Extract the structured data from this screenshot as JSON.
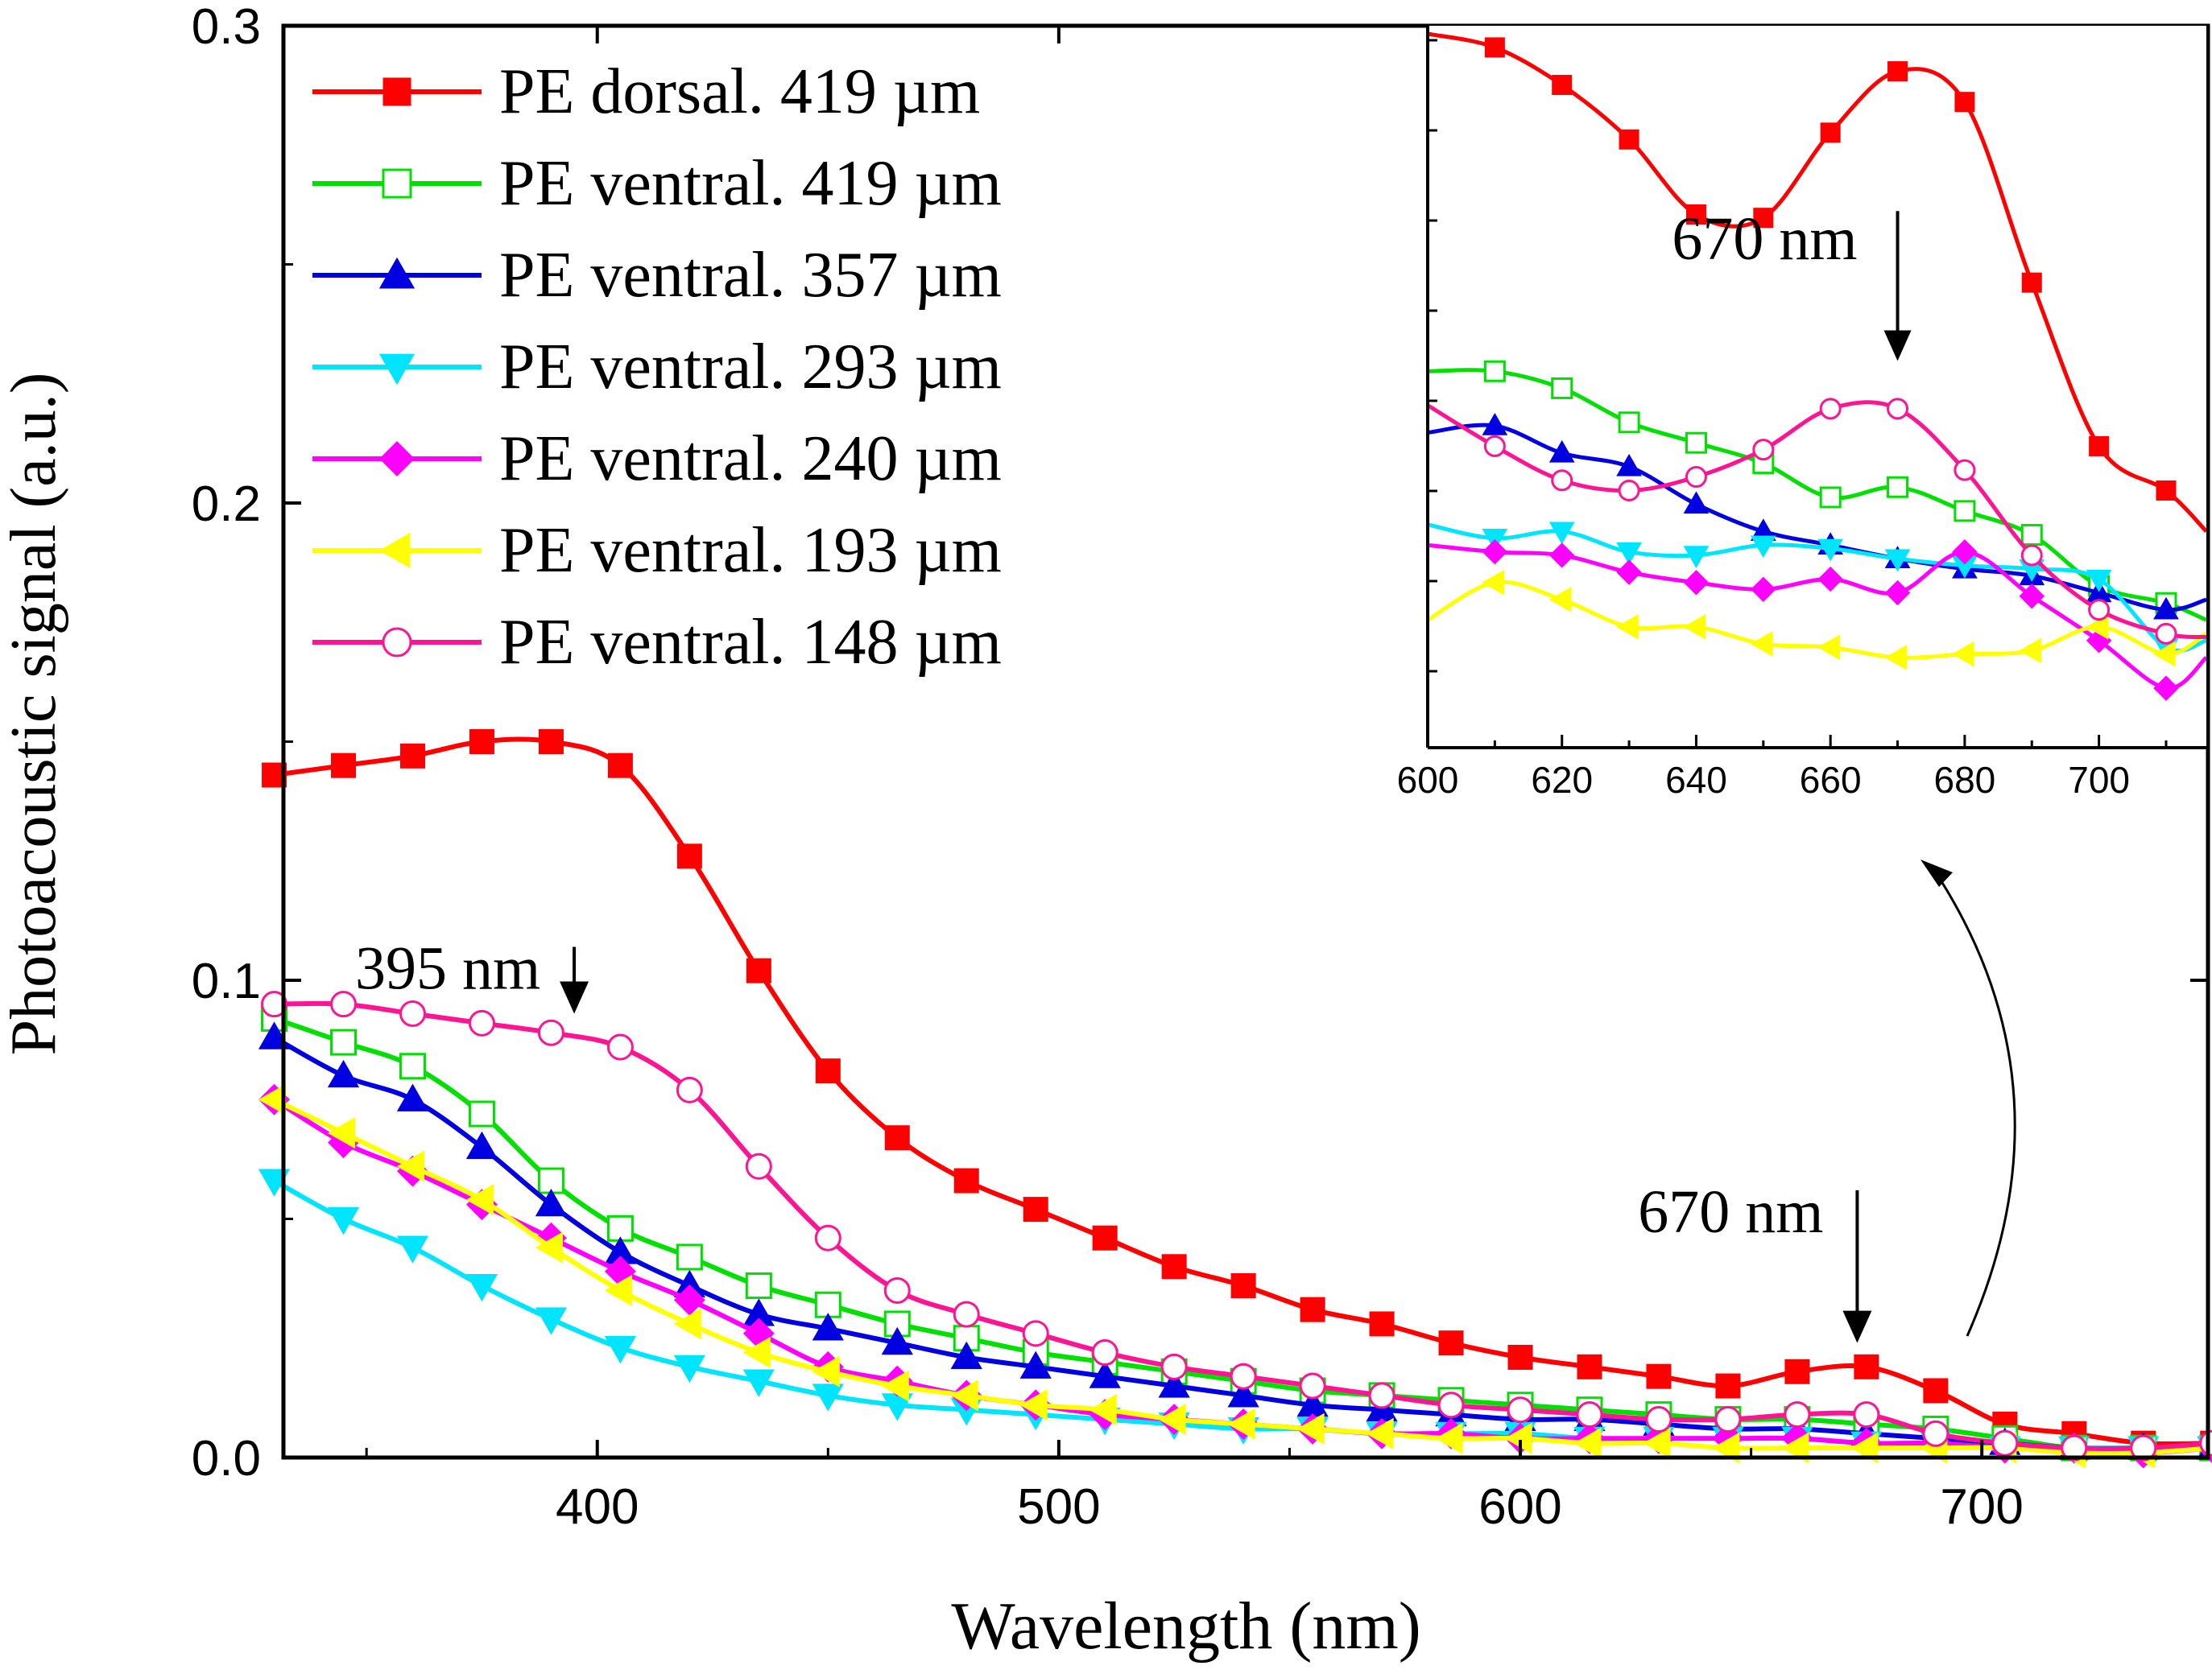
{
  "chart_data": [
    {
      "id": "main",
      "type": "line",
      "title": "",
      "xlabel": "Wavelength (nm)",
      "ylabel": "Photoacoustic signal (a.u.)",
      "xlim": [
        332,
        749
      ],
      "ylim": [
        0,
        0.3
      ],
      "xticks": [
        400,
        500,
        600,
        700
      ],
      "xtick_labels": [
        "400",
        "500",
        "600",
        "700"
      ],
      "yticks": [
        0.0,
        0.1,
        0.2,
        0.3
      ],
      "ytick_labels": [
        "0.0",
        "0.1",
        "0.2",
        "0.3"
      ],
      "legend_position": "top-left",
      "series": [
        {
          "name": "PE dorsal. 419 µm",
          "color": "#ff0000",
          "marker": "square-filled",
          "x": [
            330,
            345,
            360,
            375,
            390,
            405,
            420,
            435,
            450,
            465,
            480,
            495,
            510,
            525,
            540,
            555,
            570,
            585,
            600,
            615,
            630,
            645,
            660,
            675,
            690,
            705,
            720,
            735,
            750
          ],
          "y": [
            0.143,
            0.145,
            0.147,
            0.15,
            0.15,
            0.145,
            0.126,
            0.102,
            0.081,
            0.067,
            0.058,
            0.052,
            0.046,
            0.04,
            0.036,
            0.031,
            0.028,
            0.024,
            0.021,
            0.019,
            0.017,
            0.015,
            0.018,
            0.019,
            0.014,
            0.007,
            0.005,
            0.003,
            0.003
          ]
        },
        {
          "name": "PE ventral. 419 µm",
          "color": "#00e000",
          "marker": "square-open",
          "x": [
            330,
            345,
            360,
            375,
            390,
            405,
            420,
            435,
            450,
            465,
            480,
            495,
            510,
            525,
            540,
            555,
            570,
            585,
            600,
            615,
            630,
            645,
            660,
            675,
            690,
            705,
            720,
            735,
            750
          ],
          "y": [
            0.092,
            0.087,
            0.082,
            0.072,
            0.058,
            0.048,
            0.042,
            0.036,
            0.032,
            0.028,
            0.025,
            0.022,
            0.02,
            0.018,
            0.016,
            0.014,
            0.013,
            0.012,
            0.011,
            0.01,
            0.009,
            0.008,
            0.008,
            0.007,
            0.006,
            0.004,
            0.002,
            0.002,
            0.002
          ]
        },
        {
          "name": "PE ventral. 357 µm",
          "color": "#0000e0",
          "marker": "triangle-up-filled",
          "x": [
            330,
            345,
            360,
            375,
            390,
            405,
            420,
            435,
            450,
            465,
            480,
            495,
            510,
            525,
            540,
            555,
            570,
            585,
            600,
            615,
            630,
            645,
            660,
            675,
            690,
            705,
            720,
            735,
            750
          ],
          "y": [
            0.088,
            0.08,
            0.075,
            0.065,
            0.053,
            0.043,
            0.036,
            0.03,
            0.027,
            0.024,
            0.021,
            0.019,
            0.017,
            0.015,
            0.013,
            0.011,
            0.01,
            0.009,
            0.008,
            0.008,
            0.007,
            0.006,
            0.006,
            0.005,
            0.004,
            0.003,
            0.002,
            0.002,
            0.002
          ]
        },
        {
          "name": "PE ventral. 293 µm",
          "color": "#00e5ff",
          "marker": "triangle-down-filled",
          "x": [
            330,
            345,
            360,
            375,
            390,
            405,
            420,
            435,
            450,
            465,
            480,
            495,
            510,
            525,
            540,
            555,
            570,
            585,
            600,
            615,
            630,
            645,
            660,
            675,
            690,
            705,
            720,
            735,
            750
          ],
          "y": [
            0.058,
            0.05,
            0.044,
            0.036,
            0.029,
            0.023,
            0.019,
            0.016,
            0.013,
            0.011,
            0.01,
            0.009,
            0.008,
            0.007,
            0.006,
            0.006,
            0.005,
            0.005,
            0.005,
            0.004,
            0.004,
            0.004,
            0.004,
            0.003,
            0.003,
            0.002,
            0.002,
            0.002,
            0.002
          ]
        },
        {
          "name": "PE ventral. 240 µm",
          "color": "#ff00ff",
          "marker": "diamond-filled",
          "x": [
            330,
            345,
            360,
            375,
            390,
            405,
            420,
            435,
            450,
            465,
            480,
            495,
            510,
            525,
            540,
            555,
            570,
            585,
            600,
            615,
            630,
            645,
            660,
            675,
            690,
            705,
            720,
            735,
            750
          ],
          "y": [
            0.075,
            0.066,
            0.06,
            0.053,
            0.046,
            0.039,
            0.033,
            0.026,
            0.019,
            0.016,
            0.013,
            0.011,
            0.009,
            0.008,
            0.007,
            0.006,
            0.005,
            0.005,
            0.004,
            0.004,
            0.004,
            0.004,
            0.004,
            0.003,
            0.003,
            0.002,
            0.002,
            0.001,
            0.002
          ]
        },
        {
          "name": "PE ventral. 193 µm",
          "color": "#ffff00",
          "marker": "triangle-left-filled",
          "x": [
            330,
            345,
            360,
            375,
            390,
            405,
            420,
            435,
            450,
            465,
            480,
            495,
            510,
            525,
            540,
            555,
            570,
            585,
            600,
            615,
            630,
            645,
            660,
            675,
            690,
            705,
            720,
            735,
            750
          ],
          "y": [
            0.075,
            0.068,
            0.061,
            0.054,
            0.044,
            0.035,
            0.028,
            0.022,
            0.018,
            0.015,
            0.013,
            0.011,
            0.01,
            0.008,
            0.007,
            0.006,
            0.005,
            0.004,
            0.004,
            0.003,
            0.003,
            0.002,
            0.002,
            0.002,
            0.002,
            0.002,
            0.001,
            0.001,
            0.002
          ]
        },
        {
          "name": "PE ventral. 148 µm",
          "color": "#ff1493",
          "marker": "circle-open",
          "x": [
            330,
            345,
            360,
            375,
            390,
            405,
            420,
            435,
            450,
            465,
            480,
            495,
            510,
            525,
            540,
            555,
            570,
            585,
            600,
            615,
            630,
            645,
            660,
            675,
            690,
            705,
            720,
            735,
            750
          ],
          "y": [
            0.095,
            0.095,
            0.093,
            0.091,
            0.089,
            0.086,
            0.077,
            0.061,
            0.046,
            0.035,
            0.03,
            0.026,
            0.022,
            0.019,
            0.017,
            0.015,
            0.013,
            0.011,
            0.01,
            0.009,
            0.008,
            0.008,
            0.009,
            0.009,
            0.005,
            0.003,
            0.002,
            0.002,
            0.003
          ]
        }
      ],
      "annotations": [
        {
          "text": "395 nm",
          "x": 395,
          "arrow_from_y": 0.107,
          "arrow_to_y": 0.093
        },
        {
          "text": "670 nm",
          "x": 673,
          "arrow_from_y": 0.056,
          "arrow_to_y": 0.024
        }
      ]
    },
    {
      "id": "inset",
      "type": "line",
      "title": "",
      "xlabel": "",
      "ylabel": "",
      "xlim": [
        600,
        716
      ],
      "ylim": [
        0,
        1
      ],
      "xticks": [
        600,
        620,
        640,
        660,
        680,
        700
      ],
      "xtick_labels": [
        "600",
        "620",
        "640",
        "660",
        "680",
        "700"
      ],
      "series": [
        {
          "name": "PE dorsal. 419 µm",
          "color": "#ff0000",
          "marker": "square-filled",
          "x": [
            600,
            610,
            620,
            630,
            640,
            650,
            660,
            670,
            680,
            690,
            700,
            710,
            716
          ],
          "y": [
            1.0,
            0.98,
            0.925,
            0.845,
            0.735,
            0.73,
            0.855,
            0.945,
            0.9,
            0.635,
            0.395,
            0.33,
            0.27
          ]
        },
        {
          "name": "PE ventral. 419 µm",
          "color": "#00e000",
          "marker": "square-open",
          "x": [
            600,
            610,
            620,
            630,
            640,
            650,
            660,
            670,
            680,
            690,
            700,
            710,
            716
          ],
          "y": [
            0.505,
            0.505,
            0.48,
            0.43,
            0.4,
            0.37,
            0.32,
            0.335,
            0.3,
            0.265,
            0.19,
            0.165,
            0.14
          ]
        },
        {
          "name": "PE ventral. 357 µm",
          "color": "#0000e0",
          "marker": "triangle-up-filled",
          "x": [
            600,
            610,
            620,
            630,
            640,
            650,
            660,
            670,
            680,
            690,
            700,
            710,
            716
          ],
          "y": [
            0.415,
            0.425,
            0.385,
            0.365,
            0.31,
            0.27,
            0.25,
            0.23,
            0.215,
            0.205,
            0.18,
            0.155,
            0.17
          ]
        },
        {
          "name": "PE ventral. 293 µm",
          "color": "#00e5ff",
          "marker": "triangle-down-filled",
          "x": [
            600,
            610,
            620,
            630,
            640,
            650,
            660,
            670,
            680,
            690,
            700,
            710,
            716
          ],
          "y": [
            0.28,
            0.26,
            0.27,
            0.24,
            0.235,
            0.25,
            0.245,
            0.23,
            0.22,
            0.215,
            0.2,
            0.1,
            0.11
          ]
        },
        {
          "name": "PE ventral. 240 µm",
          "color": "#ff00ff",
          "marker": "diamond-filled",
          "x": [
            600,
            610,
            620,
            630,
            640,
            650,
            660,
            670,
            680,
            690,
            700,
            710,
            716
          ],
          "y": [
            0.25,
            0.24,
            0.235,
            0.21,
            0.195,
            0.185,
            0.2,
            0.18,
            0.24,
            0.175,
            0.11,
            0.04,
            0.085
          ]
        },
        {
          "name": "PE ventral. 193 µm",
          "color": "#ffff00",
          "marker": "triangle-left-filled",
          "x": [
            600,
            610,
            620,
            630,
            640,
            650,
            660,
            670,
            680,
            690,
            700,
            710,
            716
          ],
          "y": [
            0.14,
            0.195,
            0.17,
            0.13,
            0.13,
            0.105,
            0.1,
            0.085,
            0.09,
            0.095,
            0.13,
            0.09,
            0.12
          ]
        },
        {
          "name": "PE ventral. 148 µm",
          "color": "#ff1493",
          "marker": "circle-open",
          "x": [
            600,
            610,
            620,
            630,
            640,
            650,
            660,
            670,
            680,
            690,
            700,
            710,
            716
          ],
          "y": [
            0.455,
            0.395,
            0.345,
            0.33,
            0.35,
            0.39,
            0.45,
            0.45,
            0.36,
            0.235,
            0.155,
            0.12,
            0.115
          ]
        }
      ],
      "annotations": [
        {
          "text": "670 nm",
          "x": 670,
          "arrow_from_y": 0.74,
          "arrow_to_y": 0.52
        }
      ]
    }
  ]
}
